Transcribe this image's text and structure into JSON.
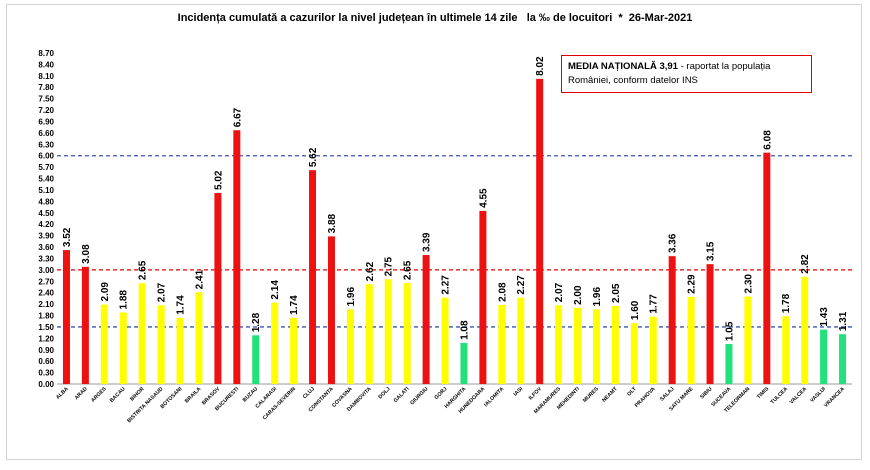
{
  "chart_data": {
    "type": "bar",
    "title": "Incidența cumulată a cazurilor la nivel județean în ultimele 14 zile   la ‰ de locuitori  *  26-Mar-2021",
    "categories": [
      "ALBA",
      "ARAD",
      "ARGES",
      "BACAU",
      "BIHOR",
      "BISTRITA NASAUD",
      "BOTOSANI",
      "BRAILA",
      "BRASOV",
      "BUCURESTI",
      "BUZAU",
      "CALARASI",
      "CARAS-SEVERIN",
      "CLUJ",
      "CONSTANTA",
      "COVASNA",
      "DAMBOVITA",
      "DOLJ",
      "GALATI",
      "GIURGIU",
      "GORJ",
      "HARGHITA",
      "HUNEDOARA",
      "IALOMITA",
      "IASI",
      "ILFOV",
      "MARAMURES",
      "MEHEDINTI",
      "MURES",
      "NEAMT",
      "OLT",
      "PRAHOVA",
      "SALAJ",
      "SATU MARE",
      "SIBIU",
      "SUCEAVA",
      "TELEORMAN",
      "TIMIS",
      "TULCEA",
      "VALCEA",
      "VASLUI",
      "VRANCEA"
    ],
    "values": [
      3.52,
      3.08,
      2.09,
      1.88,
      2.65,
      2.07,
      1.74,
      2.41,
      5.02,
      6.67,
      1.28,
      2.14,
      1.74,
      5.62,
      3.88,
      1.96,
      2.62,
      2.75,
      2.65,
      3.39,
      2.27,
      1.08,
      4.55,
      2.08,
      2.27,
      8.02,
      2.07,
      2.0,
      1.96,
      2.05,
      1.6,
      1.77,
      3.36,
      2.29,
      3.15,
      1.05,
      2.3,
      6.08,
      1.78,
      2.82,
      1.43,
      1.31
    ],
    "value_labels": [
      "3.52",
      "3.08",
      "2.09",
      "1.88",
      "2.65",
      "2.07",
      "1.74",
      "2.41",
      "5.02",
      "6.67",
      "1.28",
      "2.14",
      "1.74",
      "5.62",
      "3.88",
      "1.96",
      "2.62",
      "2.75",
      "2.65",
      "3.39",
      "2.27",
      "1.08",
      "4.55",
      "2.08",
      "2.27",
      "8.02",
      "2.07",
      "2.00",
      "1.96",
      "2.05",
      "1.60",
      "1.77",
      "3.36",
      "2.29",
      "3.15",
      "1.05",
      "2.30",
      "6.08",
      "1.78",
      "2.82",
      "1.43",
      "1.31"
    ],
    "yticks": [
      "0.00",
      "0.30",
      "0.60",
      "0.90",
      "1.20",
      "1.50",
      "1.80",
      "2.10",
      "2.40",
      "2.70",
      "3.00",
      "3.30",
      "3.60",
      "3.90",
      "4.20",
      "4.50",
      "4.80",
      "5.10",
      "5.40",
      "5.70",
      "6.00",
      "6.30",
      "6.60",
      "6.90",
      "7.20",
      "7.50",
      "7.80",
      "8.10",
      "8.40",
      "8.70"
    ],
    "ylim": [
      0,
      8.7
    ],
    "thresholds": [
      {
        "value": 1.5,
        "color": "#3a56b0",
        "style": "dashed"
      },
      {
        "value": 3.0,
        "color": "#e00000",
        "style": "dashed"
      },
      {
        "value": 6.0,
        "color": "#3a56b0",
        "style": "dashed"
      }
    ],
    "color_rules": {
      "green_max": 1.5,
      "yellow_max": 3.0,
      "green": "#22e07a",
      "yellow": "#ffff00",
      "red": "#ee1111"
    },
    "xlabel": "",
    "ylabel": "",
    "grid": false
  },
  "legend": {
    "bold": "MEDIA NAȚIONALĂ 3,91",
    "text": " - raportat la populația României, conform datelor INS"
  }
}
